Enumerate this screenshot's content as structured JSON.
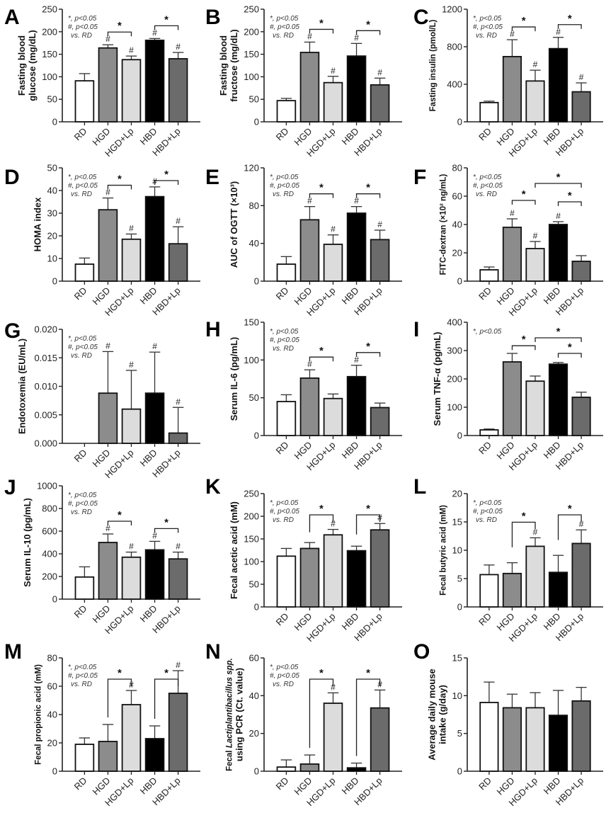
{
  "figure": {
    "categories": [
      "RD",
      "HGD",
      "HGD+Lp",
      "HBD",
      "HBD+Lp"
    ],
    "bar_colors": [
      "#ffffff",
      "#8c8c8c",
      "#dcdcdc",
      "#000000",
      "#6b6b6b"
    ],
    "edge_color": "#111111",
    "notes": {
      "star": "*, p<0.05",
      "hash": "#, p<0.05",
      "vs": "vs. RD"
    },
    "hash_symbol": "#",
    "star_symbol": "*"
  },
  "chart_data": [
    {
      "panel": "A",
      "type": "bar",
      "ylabel": [
        "Fasting blood",
        "glucose (mg/dL)"
      ],
      "ylim": [
        0,
        250
      ],
      "yticks": [
        0,
        50,
        100,
        150,
        200,
        250
      ],
      "categories": [
        "RD",
        "HGD",
        "HGD+Lp",
        "HBD",
        "HBD+Lp"
      ],
      "values": [
        91,
        164,
        138,
        181,
        140
      ],
      "errors": [
        16,
        7,
        8,
        4,
        14
      ],
      "hash": [
        false,
        true,
        true,
        true,
        true
      ],
      "notes": [
        "*, p<0.05",
        "#, p<0.05",
        "vs. RD"
      ],
      "comparisons": [
        {
          "from": "HGD",
          "to": "HGD+Lp",
          "label": "*"
        },
        {
          "from": "HBD",
          "to": "HBD+Lp",
          "label": "*"
        }
      ]
    },
    {
      "panel": "B",
      "type": "bar",
      "ylabel": [
        "Fasting blood",
        "fructose (mg/dL)"
      ],
      "ylim": [
        0,
        250
      ],
      "yticks": [
        0,
        50,
        100,
        150,
        200,
        250
      ],
      "categories": [
        "RD",
        "HGD",
        "HGD+Lp",
        "HBD",
        "HBD+Lp"
      ],
      "values": [
        47,
        154,
        87,
        146,
        82
      ],
      "errors": [
        5,
        23,
        14,
        28,
        15
      ],
      "hash": [
        false,
        true,
        true,
        true,
        true
      ],
      "notes": [
        "*, p<0.05",
        "#, p<0.05",
        "vs. RD"
      ],
      "comparisons": [
        {
          "from": "HGD",
          "to": "HGD+Lp",
          "label": "*"
        },
        {
          "from": "HBD",
          "to": "HBD+Lp",
          "label": "*"
        }
      ]
    },
    {
      "panel": "C",
      "type": "bar",
      "ylabel": [
        "Fasting insulin (pmol/L)"
      ],
      "ylim": [
        0,
        1200
      ],
      "yticks": [
        0,
        400,
        800,
        1200
      ],
      "categories": [
        "RD",
        "HGD",
        "HGD+Lp",
        "HBD",
        "HBD+Lp"
      ],
      "values": [
        205,
        695,
        435,
        780,
        320
      ],
      "errors": [
        15,
        180,
        115,
        120,
        95
      ],
      "hash": [
        false,
        true,
        true,
        true,
        true
      ],
      "notes": [
        "*, p<0.05",
        "#, p<0.05",
        "vs. RD"
      ],
      "comparisons": [
        {
          "from": "HGD",
          "to": "HGD+Lp",
          "label": "*"
        },
        {
          "from": "HBD",
          "to": "HBD+Lp",
          "label": "*"
        }
      ]
    },
    {
      "panel": "D",
      "type": "bar",
      "ylabel": [
        "HOMA index"
      ],
      "ylim": [
        0,
        50
      ],
      "yticks": [
        0,
        10,
        20,
        30,
        40,
        50
      ],
      "categories": [
        "RD",
        "HGD",
        "HGD+Lp",
        "HBD",
        "HBD+Lp"
      ],
      "values": [
        7.5,
        31.5,
        18.5,
        37.3,
        16.5
      ],
      "errors": [
        2.7,
        5.2,
        2.3,
        4.3,
        7.5
      ],
      "hash": [
        false,
        true,
        true,
        true,
        true
      ],
      "notes": [
        "*, p<0.05",
        "#, p<0.05",
        "vs. RD"
      ],
      "comparisons": [
        {
          "from": "HGD",
          "to": "HGD+Lp",
          "label": "*"
        },
        {
          "from": "HBD",
          "to": "HBD+Lp",
          "label": "*"
        }
      ]
    },
    {
      "panel": "E",
      "type": "bar",
      "ylabel": [
        "AUC of OGTT (×10³)"
      ],
      "ylim": [
        0,
        120
      ],
      "yticks": [
        0,
        40,
        80,
        120
      ],
      "categories": [
        "RD",
        "HGD",
        "HGD+Lp",
        "HBD",
        "HBD+Lp"
      ],
      "values": [
        18,
        65,
        39,
        72,
        44
      ],
      "errors": [
        8,
        14,
        10,
        7,
        10
      ],
      "hash": [
        false,
        true,
        true,
        true,
        true
      ],
      "notes": [
        "*, p<0.05",
        "#, p<0.05",
        "vs. RD"
      ],
      "comparisons": [
        {
          "from": "HGD",
          "to": "HGD+Lp",
          "label": "*"
        },
        {
          "from": "HBD",
          "to": "HBD+Lp",
          "label": "*"
        }
      ]
    },
    {
      "panel": "F",
      "type": "bar",
      "ylabel": [
        "FITC-dextran (×10² ng/mL)"
      ],
      "ylim": [
        0,
        80
      ],
      "yticks": [
        0,
        20,
        40,
        60,
        80
      ],
      "categories": [
        "RD",
        "HGD",
        "HGD+Lp",
        "HBD",
        "HBD+Lp"
      ],
      "values": [
        8,
        38,
        23,
        40,
        14
      ],
      "errors": [
        2,
        6,
        5,
        2,
        4
      ],
      "hash": [
        false,
        true,
        true,
        true,
        false
      ],
      "notes": [
        "*, p<0.05",
        "#, p<0.05",
        "vs. RD"
      ],
      "comparisons": [
        {
          "from": "HGD",
          "to": "HGD+Lp",
          "label": "*"
        },
        {
          "from": "HBD",
          "to": "HBD+Lp",
          "label": "*"
        },
        {
          "from": "HGD+Lp",
          "to": "HBD+Lp",
          "label": "*"
        }
      ]
    },
    {
      "panel": "G",
      "type": "bar",
      "ylabel": [
        "Endotoxemia (EU/mL)"
      ],
      "ylim": [
        0,
        0.02
      ],
      "yticks": [
        "0.000",
        "0.005",
        "0.010",
        "0.015",
        "0.020"
      ],
      "categories": [
        "RD",
        "HGD",
        "HGD+Lp",
        "HBD",
        "HBD+Lp"
      ],
      "values": [
        0,
        0.0088,
        0.006,
        0.0088,
        0.0018
      ],
      "errors": [
        0,
        0.0073,
        0.0068,
        0.0072,
        0.0045
      ],
      "hash": [
        false,
        true,
        true,
        true,
        true
      ],
      "notes": [
        "*, p<0.05",
        "#, p<0.05",
        "vs. RD"
      ],
      "comparisons": []
    },
    {
      "panel": "H",
      "type": "bar",
      "ylabel": [
        "Serum IL-6 (pg/mL)"
      ],
      "ylim": [
        0,
        150
      ],
      "yticks": [
        0,
        50,
        100,
        150
      ],
      "categories": [
        "RD",
        "HGD",
        "HGD+Lp",
        "HBD",
        "HBD+Lp"
      ],
      "values": [
        45,
        76,
        49,
        78,
        37
      ],
      "errors": [
        9,
        11,
        6,
        15,
        6
      ],
      "hash": [
        false,
        true,
        false,
        true,
        false
      ],
      "notes": [
        "*, p<0.05",
        "#, p<0.05",
        "vs. RD"
      ],
      "comparisons": [
        {
          "from": "HGD",
          "to": "HGD+Lp",
          "label": "*"
        },
        {
          "from": "HBD",
          "to": "HBD+Lp",
          "label": "*"
        }
      ]
    },
    {
      "panel": "I",
      "type": "bar",
      "ylabel": [
        "Serum TNF-α  (pg/mL)"
      ],
      "ylim": [
        0,
        400
      ],
      "yticks": [
        0,
        100,
        200,
        300,
        400
      ],
      "categories": [
        "RD",
        "HGD",
        "HGD+Lp",
        "HBD",
        "HBD+Lp"
      ],
      "values": [
        20,
        260,
        192,
        252,
        135
      ],
      "errors": [
        3,
        30,
        18,
        6,
        18
      ],
      "hash": [
        false,
        false,
        false,
        false,
        false
      ],
      "notes": [
        "*, p<0.05"
      ],
      "comparisons": [
        {
          "from": "HGD",
          "to": "HGD+Lp",
          "label": "*"
        },
        {
          "from": "HBD",
          "to": "HBD+Lp",
          "label": "*"
        },
        {
          "from": "HGD+Lp",
          "to": "HBD+Lp",
          "label": "*"
        }
      ]
    },
    {
      "panel": "J",
      "type": "bar",
      "ylabel": [
        "Serum IL-10 (pg/mL)"
      ],
      "ylim": [
        0,
        1000
      ],
      "yticks": [
        0,
        200,
        400,
        600,
        800,
        1000
      ],
      "categories": [
        "RD",
        "HGD",
        "HGD+Lp",
        "HBD",
        "HBD+Lp"
      ],
      "values": [
        195,
        500,
        370,
        435,
        355
      ],
      "errors": [
        90,
        75,
        45,
        75,
        60
      ],
      "hash": [
        false,
        true,
        true,
        true,
        true
      ],
      "notes": [
        "*, p<0.05",
        "#, p<0.05",
        "vs. RD"
      ],
      "comparisons": [
        {
          "from": "HGD",
          "to": "HGD+Lp",
          "label": "*"
        },
        {
          "from": "HBD",
          "to": "HBD+Lp",
          "label": "*"
        }
      ]
    },
    {
      "panel": "K",
      "type": "bar",
      "ylabel": [
        "Fecal acetic acid (mM)"
      ],
      "ylim": [
        0,
        250
      ],
      "yticks": [
        0,
        50,
        100,
        150,
        200,
        250
      ],
      "categories": [
        "RD",
        "HGD",
        "HGD+Lp",
        "HBD",
        "HBD+Lp"
      ],
      "values": [
        112,
        129,
        159,
        124,
        170
      ],
      "errors": [
        17,
        13,
        12,
        10,
        14
      ],
      "hash": [
        false,
        false,
        true,
        false,
        true
      ],
      "notes": [
        "*, p<0.05",
        "#, p<0.05",
        "vs. RD"
      ],
      "comparisons": [
        {
          "from": "HGD",
          "to": "HGD+Lp",
          "label": "*"
        },
        {
          "from": "HBD",
          "to": "HBD+Lp",
          "label": "*"
        }
      ]
    },
    {
      "panel": "L",
      "type": "bar",
      "ylabel": [
        "Fecal butyric acid (mM)"
      ],
      "ylim": [
        0,
        20
      ],
      "yticks": [
        0,
        5,
        10,
        15,
        20
      ],
      "categories": [
        "RD",
        "HGD",
        "HGD+Lp",
        "HBD",
        "HBD+Lp"
      ],
      "values": [
        5.7,
        5.9,
        10.7,
        6.1,
        11.2
      ],
      "errors": [
        1.7,
        1.9,
        1.5,
        3.0,
        2.4
      ],
      "hash": [
        false,
        false,
        true,
        false,
        true
      ],
      "notes": [
        "*, p<0.05",
        "#, p<0.05",
        "vs. RD"
      ],
      "comparisons": [
        {
          "from": "HGD",
          "to": "HGD+Lp",
          "label": "*"
        },
        {
          "from": "HBD",
          "to": "HBD+Lp",
          "label": "*"
        }
      ]
    },
    {
      "panel": "M",
      "type": "bar",
      "ylabel": [
        "Fecal propionic acid (mM)"
      ],
      "ylim": [
        0,
        80
      ],
      "yticks": [
        0,
        20,
        40,
        60,
        80
      ],
      "categories": [
        "RD",
        "HGD",
        "HGD+Lp",
        "HBD",
        "HBD+Lp"
      ],
      "values": [
        19,
        21,
        47,
        23,
        55
      ],
      "errors": [
        4.5,
        12,
        10,
        9,
        16
      ],
      "hash": [
        false,
        false,
        true,
        false,
        true
      ],
      "notes": [
        "*, p<0.05",
        "#, p<0.05",
        "vs. RD"
      ],
      "comparisons": [
        {
          "from": "HGD",
          "to": "HGD+Lp",
          "label": "*"
        },
        {
          "from": "HBD",
          "to": "HBD+Lp",
          "label": "*"
        }
      ]
    },
    {
      "panel": "N",
      "type": "bar",
      "ylabel": [
        "Fecal Lactiplantibacillus spp.",
        "using  PCR (Ct. value)"
      ],
      "ylabel_italic_part": "Lactiplantibacillus spp.",
      "ylim": [
        0,
        60
      ],
      "yticks": [
        0,
        20,
        40,
        60
      ],
      "categories": [
        "RD",
        "HGD",
        "HGD+Lp",
        "HBD",
        "HBD+Lp"
      ],
      "values": [
        2.2,
        3.8,
        36,
        1.8,
        33.5
      ],
      "errors": [
        3.8,
        4.8,
        5.5,
        2.5,
        9.5
      ],
      "hash": [
        false,
        false,
        true,
        false,
        true
      ],
      "notes": [
        "*, p<0.05",
        "#, p<0.05",
        "vs. RD"
      ],
      "comparisons": [
        {
          "from": "HGD",
          "to": "HGD+Lp",
          "label": "*"
        },
        {
          "from": "HBD",
          "to": "HBD+Lp",
          "label": "*"
        }
      ]
    },
    {
      "panel": "O",
      "type": "bar",
      "ylabel": [
        "Average daily mouse",
        "intake (g/day)"
      ],
      "ylim": [
        0,
        15
      ],
      "yticks": [
        0,
        5,
        10,
        15
      ],
      "categories": [
        "RD",
        "HGD",
        "HGD+Lp",
        "HBD",
        "HBD+Lp"
      ],
      "values": [
        9.1,
        8.4,
        8.4,
        7.4,
        9.3
      ],
      "errors": [
        2.7,
        1.8,
        2.0,
        3.3,
        1.8
      ],
      "hash": [
        false,
        false,
        false,
        false,
        false
      ],
      "notes": [],
      "comparisons": []
    }
  ]
}
